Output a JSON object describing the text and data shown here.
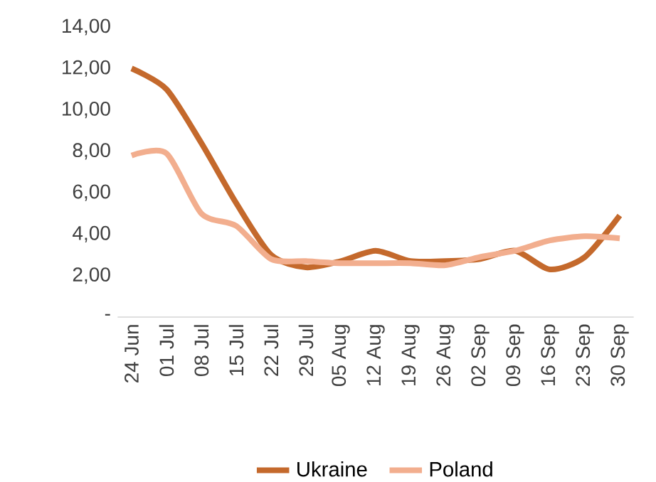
{
  "chart_data": {
    "type": "line",
    "categories": [
      "24 Jun",
      "01 Jul",
      "08 Jul",
      "15 Jul",
      "22 Jul",
      "29 Jul",
      "05 Aug",
      "12 Aug",
      "19 Aug",
      "26 Aug",
      "02 Sep",
      "09 Sep",
      "16 Sep",
      "23 Sep",
      "30 Sep"
    ],
    "series": [
      {
        "name": "Ukraine",
        "color": "#c4692c",
        "values": [
          12.0,
          11.0,
          8.4,
          5.5,
          3.0,
          2.4,
          2.7,
          3.2,
          2.7,
          2.7,
          2.8,
          3.2,
          2.3,
          2.9,
          4.9
        ]
      },
      {
        "name": "Poland",
        "color": "#f2ae8e",
        "values": [
          7.8,
          7.9,
          5.0,
          4.4,
          2.8,
          2.7,
          2.6,
          2.6,
          2.6,
          2.5,
          2.9,
          3.2,
          3.7,
          3.9,
          3.8
        ]
      }
    ],
    "ylim": [
      0,
      14
    ],
    "yticks": [
      {
        "value": 0,
        "label": "-"
      },
      {
        "value": 2,
        "label": "2,00"
      },
      {
        "value": 4,
        "label": "4,00"
      },
      {
        "value": 6,
        "label": "6,00"
      },
      {
        "value": 8,
        "label": "8,00"
      },
      {
        "value": 10,
        "label": "10,00"
      },
      {
        "value": 12,
        "label": "12,00"
      },
      {
        "value": 14,
        "label": "14,00"
      }
    ],
    "grid": false,
    "legend": "bottom",
    "marker": "none",
    "line_style": "solid"
  }
}
